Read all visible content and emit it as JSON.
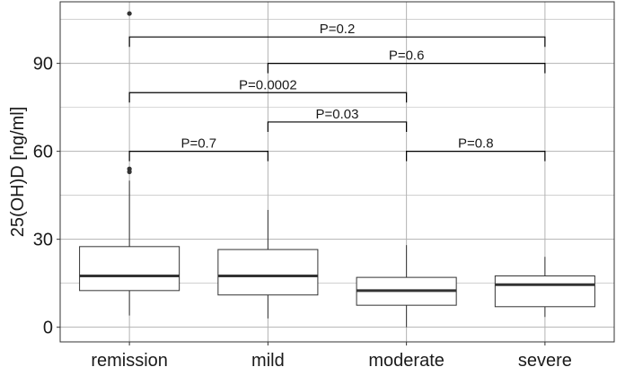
{
  "chart_data": {
    "type": "box",
    "ylabel": "25(OH)D [ng/ml]",
    "xlabel": "",
    "title": "",
    "ylim": [
      -5,
      111
    ],
    "yticks": [
      0,
      30,
      60,
      90
    ],
    "grid": true,
    "categories": [
      "remission",
      "mild",
      "moderate",
      "severe"
    ],
    "boxes": [
      {
        "category": "remission",
        "whisker_low": 4,
        "q1": 12.5,
        "median": 17.5,
        "q3": 27.5,
        "whisker_high": 50,
        "outliers": [
          53,
          54,
          107
        ]
      },
      {
        "category": "mild",
        "whisker_low": 3,
        "q1": 11,
        "median": 17.5,
        "q3": 26.5,
        "whisker_high": 40,
        "outliers": []
      },
      {
        "category": "moderate",
        "whisker_low": 0,
        "q1": 7.5,
        "median": 12.5,
        "q3": 17,
        "whisker_high": 28,
        "outliers": []
      },
      {
        "category": "severe",
        "whisker_low": 3.5,
        "q1": 7,
        "median": 14.5,
        "q3": 17.5,
        "whisker_high": 24,
        "outliers": []
      }
    ],
    "comparisons": [
      {
        "from": "remission",
        "to": "severe",
        "label": "P=0.2",
        "y": 99
      },
      {
        "from": "mild",
        "to": "severe",
        "label": "P=0.6",
        "y": 90
      },
      {
        "from": "remission",
        "to": "moderate",
        "label": "P=0.0002",
        "y": 80
      },
      {
        "from": "mild",
        "to": "moderate",
        "label": "P=0.03",
        "y": 70
      },
      {
        "from": "remission",
        "to": "mild",
        "label": "P=0.7",
        "y": 60
      },
      {
        "from": "moderate",
        "to": "severe",
        "label": "P=0.8",
        "y": 60
      }
    ],
    "colors": {
      "box": "#333333",
      "grid": "#b3b3b3",
      "bracket": "#000000",
      "text": "#1a1a1a"
    }
  }
}
